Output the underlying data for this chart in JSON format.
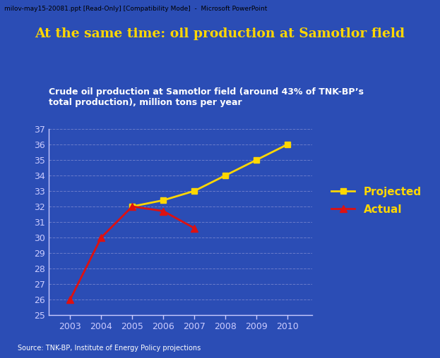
{
  "title": "At the same time: oil production at Samotlor field",
  "subtitle": "Crude oil production at Samotlor field (around 43% of TNK-BP’s\ntotal production), million tons per year",
  "source": "Source: TNK-BP, Institute of Energy Policy projections",
  "titlebar": "milov-may15-20081.ppt [Read-Only] [Compatibility Mode]  -  Microsoft PowerPoint",
  "background_color": "#2b4db5",
  "plot_bg_color": "#2b4db5",
  "titlebar_bg": "#e8e8e8",
  "titlebar_color": "#000000",
  "title_color": "#FFD700",
  "subtitle_color": "#FFFFFF",
  "source_color": "#FFFFFF",
  "projected_years": [
    2005,
    2006,
    2007,
    2008,
    2009,
    2010
  ],
  "projected_values": [
    32.0,
    32.4,
    33.0,
    34.0,
    35.0,
    36.0
  ],
  "actual_years": [
    2003,
    2004,
    2005,
    2006,
    2007
  ],
  "actual_values": [
    26.0,
    30.0,
    32.0,
    31.7,
    30.6
  ],
  "projected_color": "#FFD700",
  "actual_color": "#DD1111",
  "ylim": [
    25,
    37
  ],
  "yticks": [
    25,
    26,
    27,
    28,
    29,
    30,
    31,
    32,
    33,
    34,
    35,
    36,
    37
  ],
  "xticks": [
    2003,
    2004,
    2005,
    2006,
    2007,
    2008,
    2009,
    2010
  ],
  "grid_color": "#7080CC",
  "tick_color": "#CCCCFF",
  "axis_color": "#CCCCFF",
  "legend_text_color": "#FFD700"
}
